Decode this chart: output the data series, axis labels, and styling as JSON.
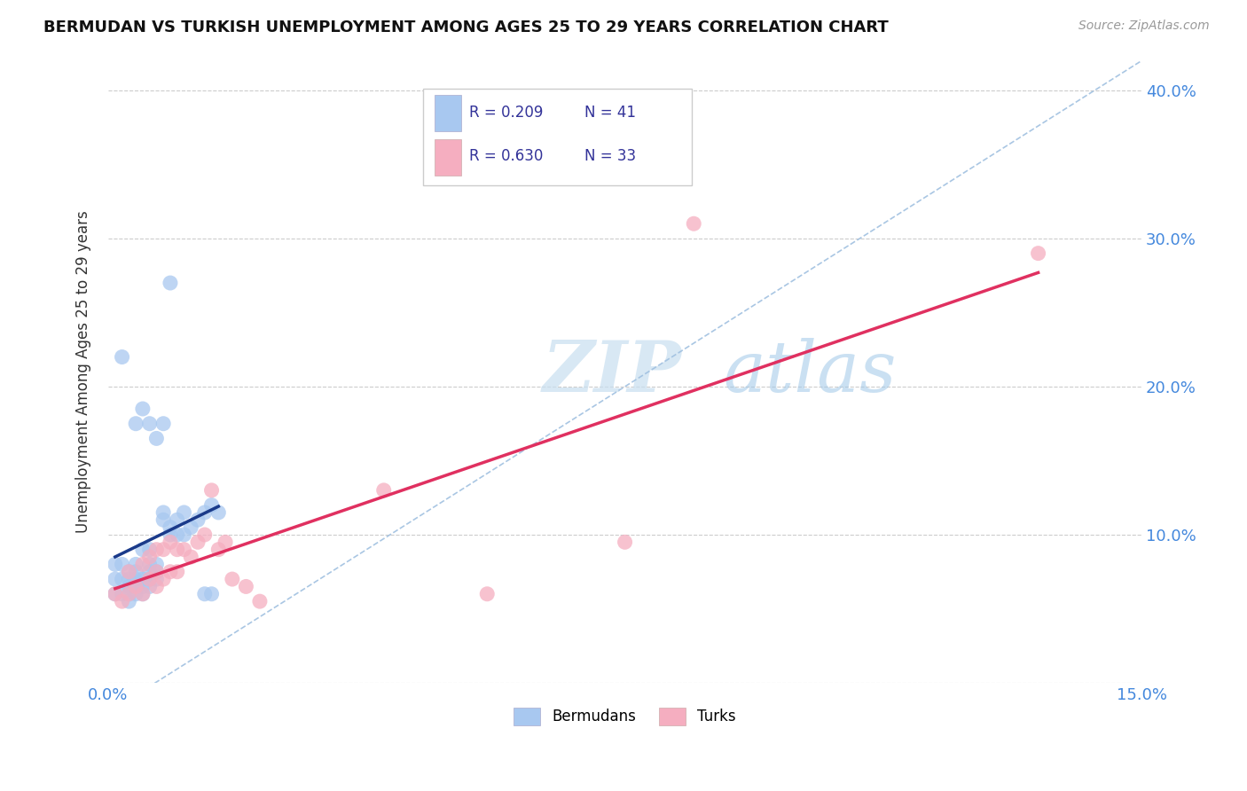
{
  "title": "BERMUDAN VS TURKISH UNEMPLOYMENT AMONG AGES 25 TO 29 YEARS CORRELATION CHART",
  "source": "Source: ZipAtlas.com",
  "ylabel": "Unemployment Among Ages 25 to 29 years",
  "xlim": [
    0.0,
    0.15
  ],
  "ylim": [
    0.0,
    0.42
  ],
  "xticks": [
    0.0,
    0.03,
    0.06,
    0.09,
    0.12,
    0.15
  ],
  "xtick_labels": [
    "0.0%",
    "",
    "",
    "",
    "",
    "15.0%"
  ],
  "ytick_labels": [
    "",
    "10.0%",
    "20.0%",
    "30.0%",
    "40.0%"
  ],
  "yticks": [
    0.0,
    0.1,
    0.2,
    0.3,
    0.4
  ],
  "r_bermuda": 0.209,
  "n_bermuda": 41,
  "r_turks": 0.63,
  "n_turks": 33,
  "watermark_ZIP": "ZIP",
  "watermark_atlas": "atlas",
  "bermuda_color": "#a8c8f0",
  "turk_color": "#f5aec0",
  "bermuda_line_color": "#1a3a8a",
  "turk_line_color": "#e03060",
  "diagonal_color": "#a0c0e0",
  "bermuda_x": [
    0.001,
    0.001,
    0.001,
    0.002,
    0.002,
    0.002,
    0.003,
    0.003,
    0.003,
    0.003,
    0.003,
    0.004,
    0.004,
    0.004,
    0.004,
    0.004,
    0.005,
    0.005,
    0.005,
    0.005,
    0.006,
    0.006,
    0.006,
    0.006,
    0.006,
    0.007,
    0.007,
    0.007,
    0.008,
    0.008,
    0.009,
    0.009,
    0.01,
    0.01,
    0.011,
    0.011,
    0.012,
    0.013,
    0.014,
    0.015,
    0.016
  ],
  "bermuda_y": [
    0.06,
    0.07,
    0.08,
    0.06,
    0.07,
    0.08,
    0.055,
    0.06,
    0.065,
    0.07,
    0.075,
    0.06,
    0.065,
    0.07,
    0.075,
    0.08,
    0.06,
    0.065,
    0.07,
    0.09,
    0.065,
    0.07,
    0.075,
    0.08,
    0.09,
    0.07,
    0.075,
    0.08,
    0.11,
    0.115,
    0.1,
    0.105,
    0.1,
    0.11,
    0.1,
    0.115,
    0.105,
    0.11,
    0.115,
    0.12,
    0.115
  ],
  "bermuda_outlier_x": [
    0.002,
    0.004,
    0.005,
    0.006,
    0.007,
    0.008,
    0.009,
    0.014,
    0.015
  ],
  "bermuda_outlier_y": [
    0.22,
    0.175,
    0.185,
    0.175,
    0.165,
    0.175,
    0.27,
    0.06,
    0.06
  ],
  "turk_x": [
    0.001,
    0.002,
    0.003,
    0.003,
    0.004,
    0.005,
    0.005,
    0.006,
    0.006,
    0.007,
    0.007,
    0.007,
    0.008,
    0.008,
    0.009,
    0.009,
    0.01,
    0.01,
    0.011,
    0.012,
    0.013,
    0.014,
    0.015,
    0.016,
    0.017,
    0.018,
    0.02,
    0.022,
    0.04,
    0.055,
    0.075,
    0.085,
    0.135
  ],
  "turk_y": [
    0.06,
    0.055,
    0.06,
    0.075,
    0.065,
    0.06,
    0.08,
    0.07,
    0.085,
    0.065,
    0.075,
    0.09,
    0.07,
    0.09,
    0.075,
    0.095,
    0.075,
    0.09,
    0.09,
    0.085,
    0.095,
    0.1,
    0.13,
    0.09,
    0.095,
    0.07,
    0.065,
    0.055,
    0.13,
    0.06,
    0.095,
    0.31,
    0.29
  ]
}
